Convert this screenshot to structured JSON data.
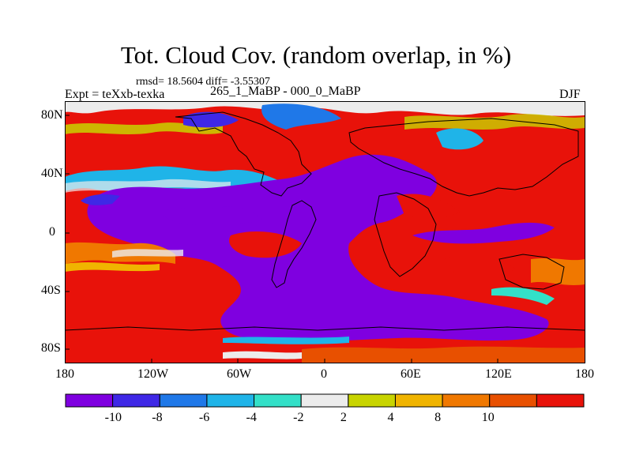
{
  "title": "Tot. Cloud Cov. (random overlap, in %)",
  "stats": "rmsd= 18.5604 diff= -3.55307",
  "experiment": "Expt = teXxb-texka",
  "difference_case": "265_1_MaBP - 000_0_MaBP",
  "season": "DJF",
  "lat_labels": [
    "80N",
    "40N",
    "0",
    "40S",
    "80S"
  ],
  "lon_labels": [
    "180",
    "120W",
    "60W",
    "0",
    "60E",
    "120E",
    "180"
  ],
  "colorbar": {
    "labels": [
      "-10",
      "-8",
      "-6",
      "-4",
      "-2",
      "2",
      "4",
      "8",
      "10"
    ],
    "colors": [
      "#7f00e0",
      "#3f28e6",
      "#1f78e8",
      "#1fb4e8",
      "#33e0c8",
      "#ececec",
      "#c8d400",
      "#f0b400",
      "#f07800",
      "#e85000",
      "#e8120a"
    ]
  }
}
